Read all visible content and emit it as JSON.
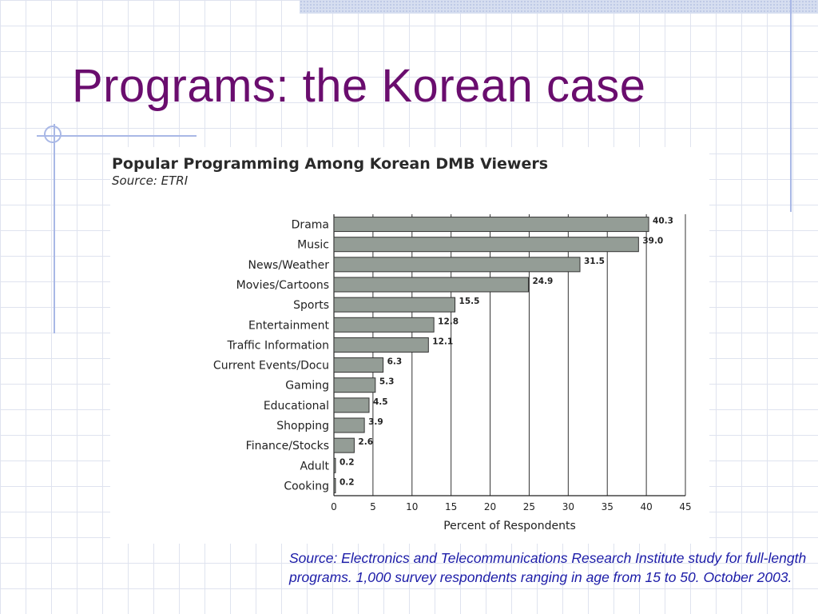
{
  "slide": {
    "title": "Programs: the Korean case",
    "source_note": "Source: Electronics and Telecommunications Research Institute study for full-length programs. 1,000 survey respondents ranging in age from 15 to 50. October 2003."
  },
  "colors": {
    "title": "#6a0d6e",
    "bar_fill": "#949d96",
    "source_note": "#1c1ca8",
    "grid_lines": "#dfe3ef"
  },
  "chart_data": {
    "type": "bar",
    "orientation": "horizontal",
    "title": "Popular Programming Among Korean DMB Viewers",
    "subtitle": "Source: ETRI",
    "xlabel": "Percent of Respondents",
    "ylabel": "",
    "xlim": [
      0,
      45
    ],
    "xticks": [
      0,
      5,
      10,
      15,
      20,
      25,
      30,
      35,
      40,
      45
    ],
    "grid": true,
    "categories": [
      "Drama",
      "Music",
      "News/Weather",
      "Movies/Cartoons",
      "Sports",
      "Entertainment",
      "Traffic Information",
      "Current Events/Docu",
      "Gaming",
      "Educational",
      "Shopping",
      "Finance/Stocks",
      "Adult",
      "Cooking"
    ],
    "values": [
      40.3,
      39.0,
      31.5,
      24.9,
      15.5,
      12.8,
      12.1,
      6.3,
      5.3,
      4.5,
      3.9,
      2.6,
      0.2,
      0.2
    ],
    "value_labels": [
      "40.3",
      "39.0",
      "31.5",
      "24.9",
      "15.5",
      "12.8",
      "12.1",
      "6.3",
      "5.3",
      "4.5",
      "3.9",
      "2.6",
      "0.2",
      "0.2"
    ]
  }
}
